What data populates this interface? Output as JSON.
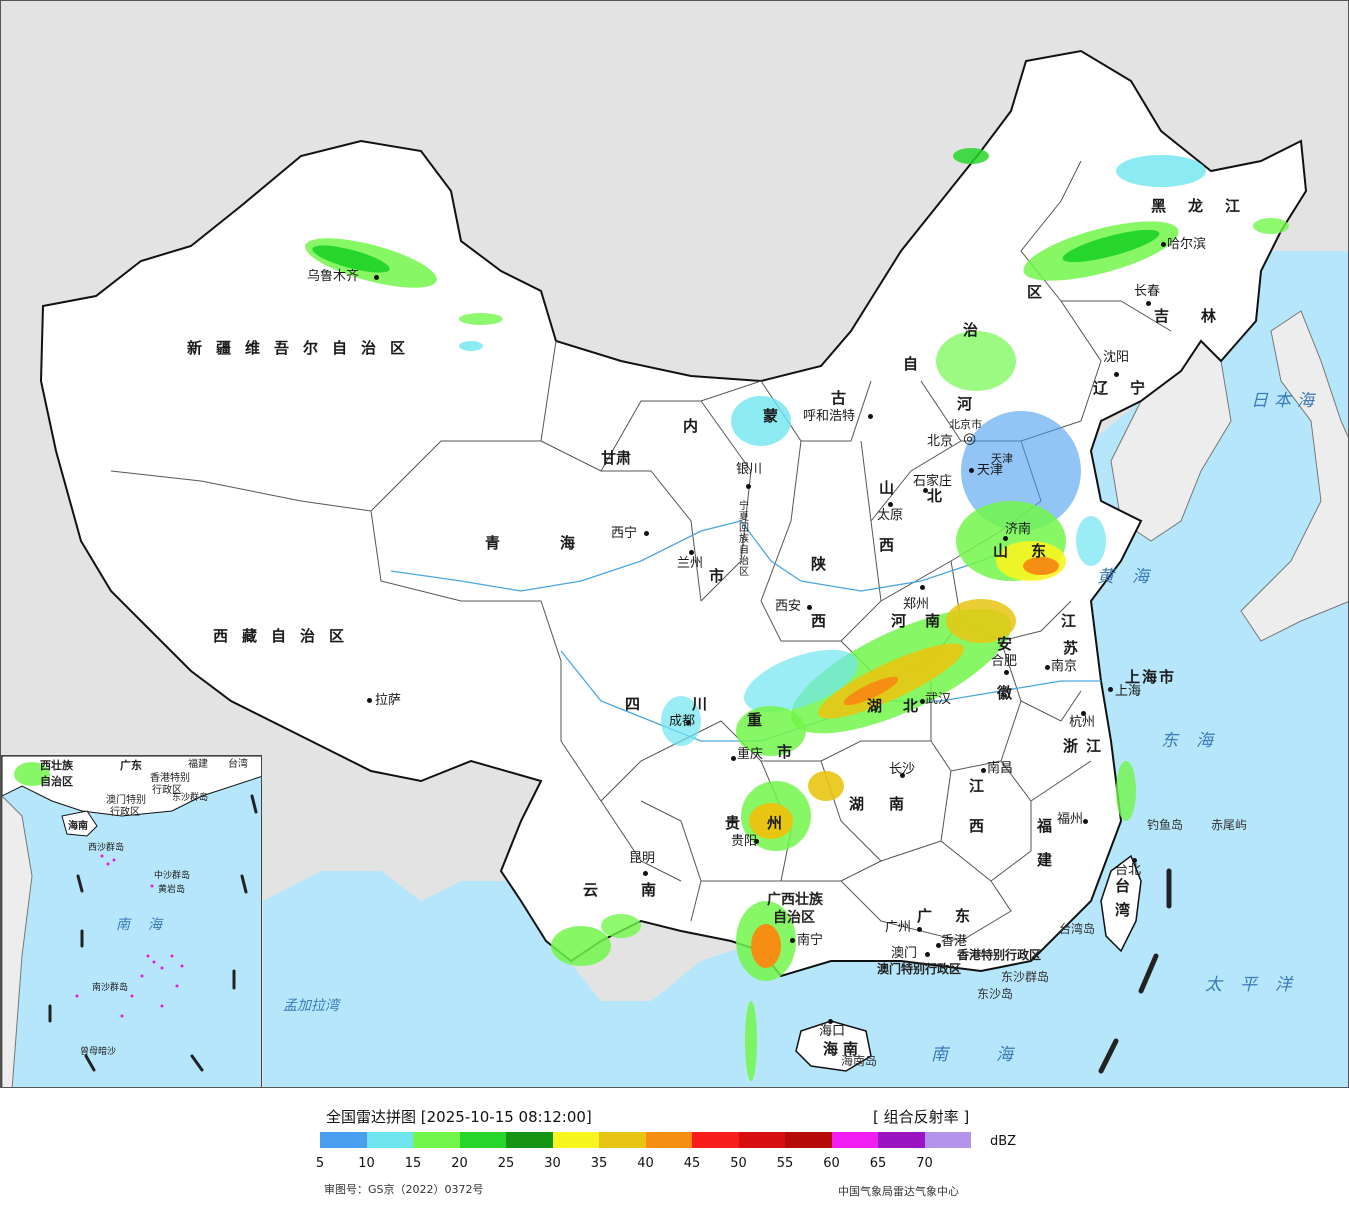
{
  "legend": {
    "title": "全国雷达拼图 [2025-10-15 08:12:00]",
    "product": "[ 组合反射率 ]",
    "unit": "dBZ",
    "ticks": [
      "5",
      "10",
      "15",
      "20",
      "25",
      "30",
      "35",
      "40",
      "45",
      "50",
      "55",
      "60",
      "65",
      "70"
    ],
    "colors": [
      "#4a9ef0",
      "#6fe6ef",
      "#72f64b",
      "#27d62a",
      "#159312",
      "#f7f520",
      "#e8c512",
      "#f68e14",
      "#f71e1a",
      "#d80f10",
      "#b50c0a",
      "#f01cf2",
      "#9a14c2",
      "#b294ed"
    ],
    "review_no": "审图号：GS京（2022）0372号",
    "producer": "中国气象局雷达气象中心"
  },
  "map": {
    "land_color": "#ffffff",
    "sea_color": "#b6e6fb",
    "outside_color": "#e3e3e3",
    "provinces": {
      "xinjiang": "新疆维吾尔自治区",
      "xizang": "西藏自治区",
      "qinghai": "青海",
      "gansu": "甘肃",
      "neimenggu_1": "内",
      "neimenggu_2": "蒙",
      "neimenggu_3": "古",
      "neimenggu_4": "自",
      "neimenggu_5": "治",
      "neimenggu_6": "区",
      "heilongjiang": "黑龙江",
      "jilin": "吉林",
      "liaoning": "辽宁",
      "hebei_1": "河",
      "hebei_2": "北",
      "shanxi_1": "山",
      "shanxi_2": "西",
      "shaanxi_1": "陕",
      "shaanxi_2": "西",
      "ningxia": "宁夏回族自治区",
      "shandong_1": "山",
      "shandong_2": "东",
      "henan_1": "河",
      "henan_2": "南",
      "jiangsu_1": "江",
      "jiangsu_2": "苏",
      "anhui_1": "安",
      "anhui_2": "徽",
      "shanghai": "上海市",
      "zhejiang": "浙江",
      "hubei_1": "湖",
      "hubei_2": "北",
      "hunan_1": "湖",
      "hunan_2": "南",
      "jiangxi_1": "江",
      "jiangxi_2": "西",
      "fujian_1": "福",
      "fujian_2": "建",
      "sichuan": "四川",
      "chongqing_1": "重",
      "chongqing_2": "庆",
      "chongqing_3": "市",
      "guizhou_1": "贵",
      "guizhou_2": "州",
      "yunnan_1": "云",
      "yunnan_2": "南",
      "guangxi_1": "广西壮族",
      "guangxi_2": "自治区",
      "guangdong_1": "广",
      "guangdong_2": "东",
      "hainan_1": "海",
      "hainan_2": "南",
      "taiwan_1": "台",
      "taiwan_2": "湾",
      "hk": "香港特别行政区",
      "macau": "澳门特别行政区",
      "beijing": "北京市",
      "tianjin": "天津"
    },
    "cities": {
      "urumqi": "乌鲁木齐",
      "lhasa": "拉萨",
      "xining": "西宁",
      "lanzhou": "兰州",
      "yinchuan": "银川",
      "hohhot": "呼和浩特",
      "harbin": "哈尔滨",
      "changchun": "长春",
      "shenyang": "沈阳",
      "beijing": "北京",
      "tianjin": "天津",
      "shijiazhuang": "石家庄",
      "taiyuan": "太原",
      "jinan": "济南",
      "zhengzhou": "郑州",
      "xian": "西安",
      "hefei": "合肥",
      "nanjing": "南京",
      "shanghai": "上海",
      "hangzhou": "杭州",
      "wuhan": "武汉",
      "chengdu": "成都",
      "chongqing": "重庆",
      "changsha": "长沙",
      "nanchang": "南昌",
      "fuzhou": "福州",
      "guiyang": "贵阳",
      "kunming": "昆明",
      "nanning": "南宁",
      "guangzhou": "广州",
      "hongkong": "香港",
      "macau": "澳门",
      "haikou": "海口",
      "taipei": "台北"
    },
    "seas": {
      "japan_sea": "日本海",
      "yellow_sea": "黄海",
      "east_sea": "东海",
      "pacific": "太平洋",
      "south_sea": "南海",
      "bengal": "孟加拉湾"
    },
    "islands": {
      "diaoyu": "钓鱼岛",
      "chiwei": "赤尾屿",
      "taiwan_island": "台湾岛",
      "dongsha_islands": "东沙群岛",
      "dongsha_island": "东沙岛",
      "hainan_island": "海南岛"
    },
    "inset": {
      "guangxi_short": "西壮族",
      "guangxi_short2": "自治区",
      "guangdong": "广东",
      "fujian": "福建",
      "taiwan": "台湾",
      "hk": "香港特别",
      "hk2": "行政区",
      "macau": "澳门特别",
      "macau2": "行政区",
      "hainan": "海南",
      "dongsha": "东沙群岛",
      "xisha": "西沙群岛",
      "zhongsha": "中沙群岛",
      "huangyan": "黄岩岛",
      "nansha": "南沙群岛",
      "zengmu": "曾母暗沙",
      "south_sea": "南海"
    }
  }
}
